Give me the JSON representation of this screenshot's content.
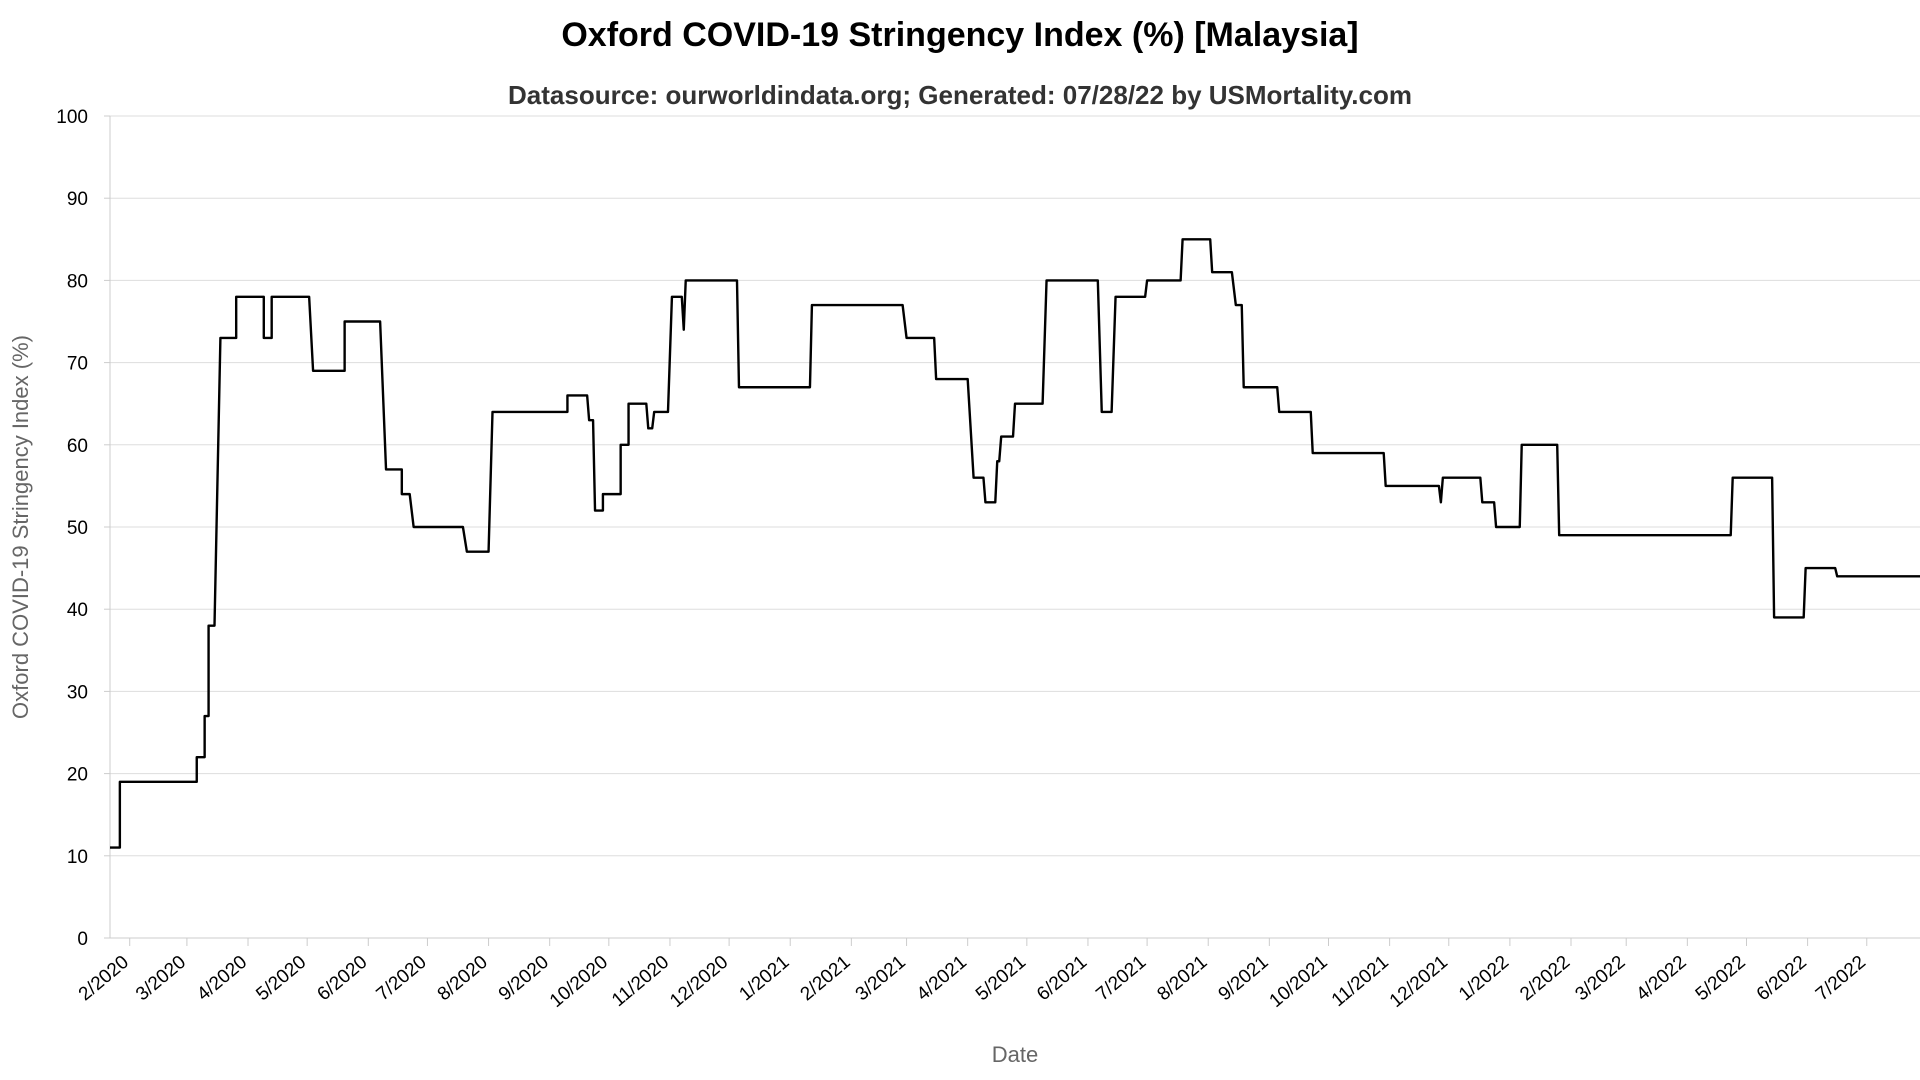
{
  "chart_data": {
    "type": "line",
    "title": "Oxford COVID-19 Stringency Index (%) [Malaysia]",
    "subtitle": "Datasource: ourworldindata.org; Generated: 07/28/22 by USMortality.com",
    "xlabel": "Date",
    "ylabel": "Oxford COVID-19 Stringency Index (%)",
    "ylim": [
      0,
      100
    ],
    "yticks": [
      0,
      10,
      20,
      30,
      40,
      50,
      60,
      70,
      80,
      90,
      100
    ],
    "xlim": [
      "2020-01-22",
      "2022-07-28"
    ],
    "xticks": [
      {
        "date": "2020-02-01",
        "label": "2/2020"
      },
      {
        "date": "2020-03-01",
        "label": "3/2020"
      },
      {
        "date": "2020-04-01",
        "label": "4/2020"
      },
      {
        "date": "2020-05-01",
        "label": "5/2020"
      },
      {
        "date": "2020-06-01",
        "label": "6/2020"
      },
      {
        "date": "2020-07-01",
        "label": "7/2020"
      },
      {
        "date": "2020-08-01",
        "label": "8/2020"
      },
      {
        "date": "2020-09-01",
        "label": "9/2020"
      },
      {
        "date": "2020-10-01",
        "label": "10/2020"
      },
      {
        "date": "2020-11-01",
        "label": "11/2020"
      },
      {
        "date": "2020-12-01",
        "label": "12/2020"
      },
      {
        "date": "2021-01-01",
        "label": "1/2021"
      },
      {
        "date": "2021-02-01",
        "label": "2/2021"
      },
      {
        "date": "2021-03-01",
        "label": "3/2021"
      },
      {
        "date": "2021-04-01",
        "label": "4/2021"
      },
      {
        "date": "2021-05-01",
        "label": "5/2021"
      },
      {
        "date": "2021-06-01",
        "label": "6/2021"
      },
      {
        "date": "2021-07-01",
        "label": "7/2021"
      },
      {
        "date": "2021-08-01",
        "label": "8/2021"
      },
      {
        "date": "2021-09-01",
        "label": "9/2021"
      },
      {
        "date": "2021-10-01",
        "label": "10/2021"
      },
      {
        "date": "2021-11-01",
        "label": "11/2021"
      },
      {
        "date": "2021-12-01",
        "label": "12/2021"
      },
      {
        "date": "2022-01-01",
        "label": "1/2022"
      },
      {
        "date": "2022-02-01",
        "label": "2/2022"
      },
      {
        "date": "2022-03-01",
        "label": "3/2022"
      },
      {
        "date": "2022-04-01",
        "label": "4/2022"
      },
      {
        "date": "2022-05-01",
        "label": "5/2022"
      },
      {
        "date": "2022-06-01",
        "label": "6/2022"
      },
      {
        "date": "2022-07-01",
        "label": "7/2022"
      }
    ],
    "grid": true,
    "line_color": "#000000",
    "series": [
      {
        "name": "",
        "points": [
          [
            "2020-01-22",
            11
          ],
          [
            "2020-01-27",
            11
          ],
          [
            "2020-01-27",
            19
          ],
          [
            "2020-03-06",
            19
          ],
          [
            "2020-03-06",
            22
          ],
          [
            "2020-03-10",
            22
          ],
          [
            "2020-03-10",
            27
          ],
          [
            "2020-03-12",
            27
          ],
          [
            "2020-03-12",
            38
          ],
          [
            "2020-03-15",
            38
          ],
          [
            "2020-03-18",
            73
          ],
          [
            "2020-03-26",
            73
          ],
          [
            "2020-03-26",
            78
          ],
          [
            "2020-04-09",
            78
          ],
          [
            "2020-04-09",
            73
          ],
          [
            "2020-04-13",
            73
          ],
          [
            "2020-04-13",
            78
          ],
          [
            "2020-05-02",
            78
          ],
          [
            "2020-05-04",
            69
          ],
          [
            "2020-05-20",
            69
          ],
          [
            "2020-05-20",
            75
          ],
          [
            "2020-06-07",
            75
          ],
          [
            "2020-06-10",
            57
          ],
          [
            "2020-06-18",
            57
          ],
          [
            "2020-06-18",
            54
          ],
          [
            "2020-06-22",
            54
          ],
          [
            "2020-06-24",
            50
          ],
          [
            "2020-07-19",
            50
          ],
          [
            "2020-07-21",
            47
          ],
          [
            "2020-08-01",
            47
          ],
          [
            "2020-08-03",
            64
          ],
          [
            "2020-09-10",
            64
          ],
          [
            "2020-09-10",
            66
          ],
          [
            "2020-09-20",
            66
          ],
          [
            "2020-09-21",
            63
          ],
          [
            "2020-09-23",
            63
          ],
          [
            "2020-09-24",
            52
          ],
          [
            "2020-09-28",
            52
          ],
          [
            "2020-09-28",
            54
          ],
          [
            "2020-10-07",
            54
          ],
          [
            "2020-10-07",
            60
          ],
          [
            "2020-10-11",
            60
          ],
          [
            "2020-10-11",
            65
          ],
          [
            "2020-10-20",
            65
          ],
          [
            "2020-10-21",
            62
          ],
          [
            "2020-10-23",
            62
          ],
          [
            "2020-10-24",
            64
          ],
          [
            "2020-10-31",
            64
          ],
          [
            "2020-11-02",
            78
          ],
          [
            "2020-11-07",
            78
          ],
          [
            "2020-11-08",
            74
          ],
          [
            "2020-11-09",
            80
          ],
          [
            "2020-12-05",
            80
          ],
          [
            "2020-12-06",
            67
          ],
          [
            "2021-01-11",
            67
          ],
          [
            "2021-01-12",
            77
          ],
          [
            "2021-02-27",
            77
          ],
          [
            "2021-03-01",
            73
          ],
          [
            "2021-03-15",
            73
          ],
          [
            "2021-03-16",
            68
          ],
          [
            "2021-04-01",
            68
          ],
          [
            "2021-04-04",
            56
          ],
          [
            "2021-04-09",
            56
          ],
          [
            "2021-04-10",
            53
          ],
          [
            "2021-04-15",
            53
          ],
          [
            "2021-04-16",
            58
          ],
          [
            "2021-04-17",
            58
          ],
          [
            "2021-04-18",
            61
          ],
          [
            "2021-04-24",
            61
          ],
          [
            "2021-04-25",
            65
          ],
          [
            "2021-05-09",
            65
          ],
          [
            "2021-05-11",
            80
          ],
          [
            "2021-06-06",
            80
          ],
          [
            "2021-06-08",
            64
          ],
          [
            "2021-06-13",
            64
          ],
          [
            "2021-06-15",
            78
          ],
          [
            "2021-06-30",
            78
          ],
          [
            "2021-07-01",
            80
          ],
          [
            "2021-07-18",
            80
          ],
          [
            "2021-07-19",
            85
          ],
          [
            "2021-08-02",
            85
          ],
          [
            "2021-08-03",
            81
          ],
          [
            "2021-08-13",
            81
          ],
          [
            "2021-08-15",
            77
          ],
          [
            "2021-08-18",
            77
          ],
          [
            "2021-08-19",
            67
          ],
          [
            "2021-09-05",
            67
          ],
          [
            "2021-09-06",
            64
          ],
          [
            "2021-09-22",
            64
          ],
          [
            "2021-09-23",
            59
          ],
          [
            "2021-10-29",
            59
          ],
          [
            "2021-10-30",
            55
          ],
          [
            "2021-11-26",
            55
          ],
          [
            "2021-11-27",
            53
          ],
          [
            "2021-11-28",
            56
          ],
          [
            "2021-12-17",
            56
          ],
          [
            "2021-12-18",
            53
          ],
          [
            "2021-12-24",
            53
          ],
          [
            "2021-12-25",
            50
          ],
          [
            "2022-01-06",
            50
          ],
          [
            "2022-01-07",
            60
          ],
          [
            "2022-01-25",
            60
          ],
          [
            "2022-01-26",
            49
          ],
          [
            "2022-04-23",
            49
          ],
          [
            "2022-04-24",
            56
          ],
          [
            "2022-05-14",
            56
          ],
          [
            "2022-05-15",
            39
          ],
          [
            "2022-05-30",
            39
          ],
          [
            "2022-05-31",
            45
          ],
          [
            "2022-06-15",
            45
          ],
          [
            "2022-06-16",
            44
          ],
          [
            "2022-07-28",
            44
          ]
        ]
      }
    ]
  }
}
